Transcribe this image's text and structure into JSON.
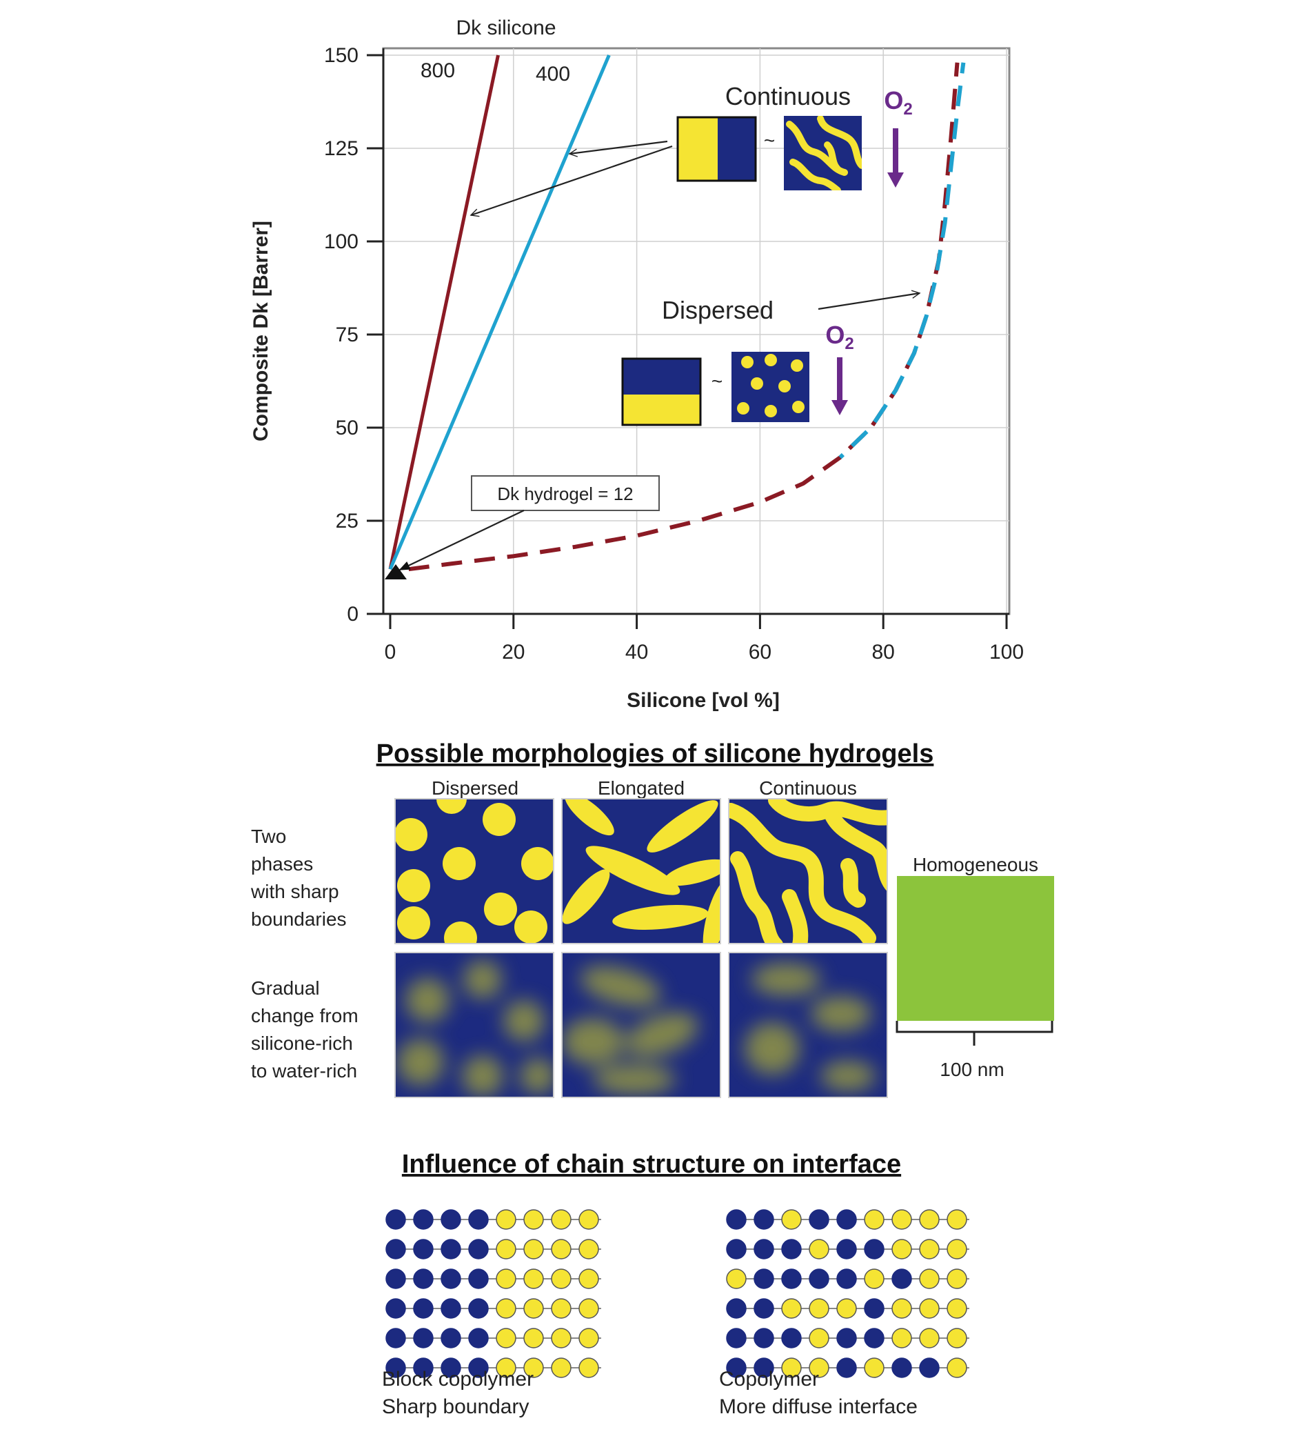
{
  "chart_data": {
    "type": "line",
    "xlabel": "Silicone [vol %]",
    "ylabel": "Composite Dk [Barrer]",
    "xlim": [
      0,
      100
    ],
    "ylim": [
      0,
      150
    ],
    "xticks": [
      "0",
      "20",
      "40",
      "60",
      "80",
      "100"
    ],
    "yticks": [
      "0",
      "25",
      "50",
      "75",
      "100",
      "125",
      "150"
    ],
    "grid": true,
    "series_group_label": "Dk silicone",
    "series": [
      {
        "name": "800",
        "style": "solid",
        "color": "#8b1a24",
        "x": [
          0,
          17.5
        ],
        "y": [
          12,
          150
        ]
      },
      {
        "name": "400",
        "style": "solid",
        "color": "#1fa2cf",
        "x": [
          0,
          35.5
        ],
        "y": [
          12,
          150
        ]
      },
      {
        "name": "",
        "style": "dashed",
        "color": "#8b1a24",
        "x": [
          3,
          10,
          20,
          30,
          40,
          50,
          60,
          67,
          73,
          78,
          82,
          85,
          87,
          89,
          90,
          91,
          92
        ],
        "y": [
          12,
          13.5,
          15.5,
          18,
          21,
          25,
          30,
          35,
          42,
          50,
          60,
          70,
          80,
          95,
          110,
          128,
          148
        ]
      },
      {
        "name": "",
        "style": "dashed",
        "color": "#1fa2cf",
        "x": [
          73,
          78,
          82,
          85,
          87,
          88.5,
          90,
          91,
          92,
          93
        ],
        "y": [
          42,
          50,
          60,
          70,
          80,
          90,
          105,
          120,
          135,
          148
        ]
      }
    ],
    "annotations": {
      "continuous": "Continuous",
      "dispersed": "Dispersed",
      "o2_top": "O",
      "o2_sub": "2",
      "hydrogel_box": "Dk hydrogel = 12",
      "tilde": "~"
    }
  },
  "morphologies": {
    "title": "Possible morphologies of silicone hydrogels",
    "columns": [
      "Dispersed",
      "Elongated",
      "Continuous"
    ],
    "row_sharp": [
      "Two",
      "phases",
      "with sharp",
      "boundaries"
    ],
    "row_gradual": [
      "Gradual",
      "change from",
      "silicone-rich",
      "to water-rich"
    ],
    "homogeneous": "Homogeneous",
    "scale_label": "100 nm"
  },
  "chains": {
    "title": "Influence of chain structure on interface",
    "block_label_1": "Block copolymer",
    "block_label_2": "Sharp boundary",
    "copoly_label_1": "Copolymer",
    "copoly_label_2": "More diffuse interface",
    "block_rows": [
      "BBBBYYYY",
      "BBBBYYYY",
      "BBBBYYYY",
      "BBBBYYYY",
      "BBBBYYYY",
      "BBBBYYYY"
    ],
    "copoly_rows": [
      "BBYBBYYYY",
      "BBBYBBYYY",
      "YBBBBYBYY",
      "BBYYYBYYY",
      "BBBYBBYYY",
      "BBYYBYBBY"
    ]
  },
  "colors": {
    "navy": "#1c2a80",
    "yellow": "#f5e433",
    "green": "#8cc43c",
    "red_line": "#8b1a24",
    "blue_line": "#1fa2cf",
    "purple": "#6a2a8a"
  }
}
